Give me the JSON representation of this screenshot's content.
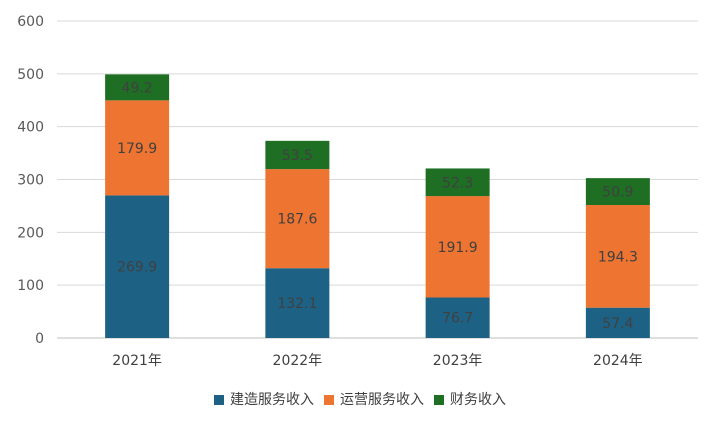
{
  "chart_data": {
    "type": "bar",
    "stacked": true,
    "categories": [
      "2021年",
      "2022年",
      "2023年",
      "2024年"
    ],
    "series": [
      {
        "name": "建造服务收入",
        "values": [
          269.9,
          132.1,
          76.7,
          57.4
        ],
        "color": "#1d6285"
      },
      {
        "name": "运营服务收入",
        "values": [
          179.9,
          187.6,
          191.9,
          194.3
        ],
        "color": "#ed7431"
      },
      {
        "name": "财务收入",
        "values": [
          49.2,
          53.5,
          52.3,
          50.9
        ],
        "color": "#1e6e23"
      }
    ],
    "y_ticks": [
      "0",
      "100",
      "200",
      "300",
      "400",
      "500",
      "600"
    ],
    "ylim": [
      0,
      600
    ],
    "grid": true,
    "legend_position": "bottom",
    "title": "",
    "xlabel": "",
    "ylabel": ""
  }
}
